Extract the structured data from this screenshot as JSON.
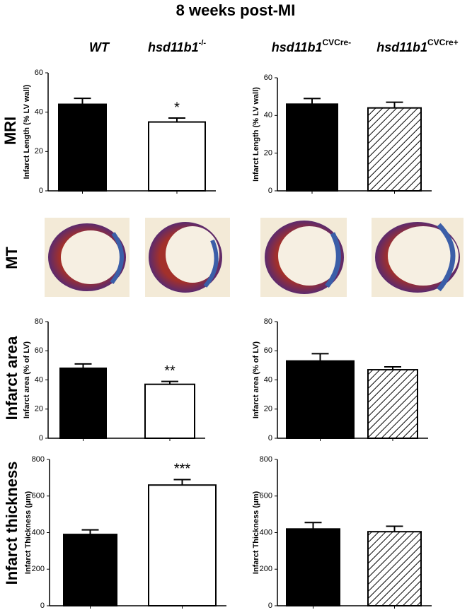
{
  "figure": {
    "title": "8 weeks post-MI",
    "columns": [
      {
        "text": "WT"
      },
      {
        "text": "hsd11b1",
        "sup": "-/-"
      },
      {
        "text": "hsd11b1",
        "sup": "CVCre-"
      },
      {
        "text": "hsd11b1",
        "sup": "CVCre+"
      }
    ],
    "rows": [
      "MRI",
      "MT",
      "Infarct area",
      "Infarct thickness"
    ]
  },
  "chart_data": [
    {
      "type": "bar",
      "ylabel": "Infarct Length (% LV wall)",
      "categories": [
        null,
        null
      ],
      "values": [
        44,
        35
      ],
      "errors": [
        3,
        2
      ],
      "fills": [
        "black",
        "white"
      ],
      "significance": [
        null,
        "*"
      ],
      "ylim": [
        0,
        60
      ],
      "yticks": [
        0,
        20,
        40,
        60
      ]
    },
    {
      "type": "bar",
      "ylabel": "Infarct Length (% LV wall)",
      "categories": [
        null,
        null
      ],
      "values": [
        46,
        44
      ],
      "errors": [
        3,
        3
      ],
      "fills": [
        "black",
        "hatched"
      ],
      "significance": [
        null,
        null
      ],
      "ylim": [
        0,
        60
      ],
      "yticks": [
        0,
        20,
        40,
        60
      ]
    },
    {
      "type": "bar",
      "ylabel": "Infarct area (% of LV)",
      "categories": [
        null,
        null
      ],
      "values": [
        48,
        37
      ],
      "errors": [
        3,
        2
      ],
      "fills": [
        "black",
        "white"
      ],
      "significance": [
        null,
        "**"
      ],
      "ylim": [
        0,
        80
      ],
      "yticks": [
        0,
        20,
        40,
        60,
        80
      ]
    },
    {
      "type": "bar",
      "ylabel": "Infarct area (% of LV)",
      "categories": [
        null,
        null
      ],
      "values": [
        53,
        47
      ],
      "errors": [
        5,
        2
      ],
      "fills": [
        "black",
        "hatched"
      ],
      "significance": [
        null,
        null
      ],
      "ylim": [
        0,
        80
      ],
      "yticks": [
        0,
        20,
        40,
        60,
        80
      ]
    },
    {
      "type": "bar",
      "ylabel": "Infarct Thickness (μm)",
      "categories": [
        null,
        null
      ],
      "values": [
        390,
        660
      ],
      "errors": [
        25,
        30
      ],
      "fills": [
        "black",
        "white"
      ],
      "significance": [
        null,
        "***"
      ],
      "ylim": [
        0,
        800
      ],
      "yticks": [
        0,
        200,
        400,
        600,
        800
      ]
    },
    {
      "type": "bar",
      "ylabel": "Infarct Thickness (μm)",
      "categories": [
        null,
        null
      ],
      "values": [
        420,
        405
      ],
      "errors": [
        35,
        30
      ],
      "fills": [
        "black",
        "hatched"
      ],
      "significance": [
        null,
        null
      ],
      "ylim": [
        0,
        800
      ],
      "yticks": [
        0,
        200,
        400,
        600,
        800
      ]
    }
  ]
}
